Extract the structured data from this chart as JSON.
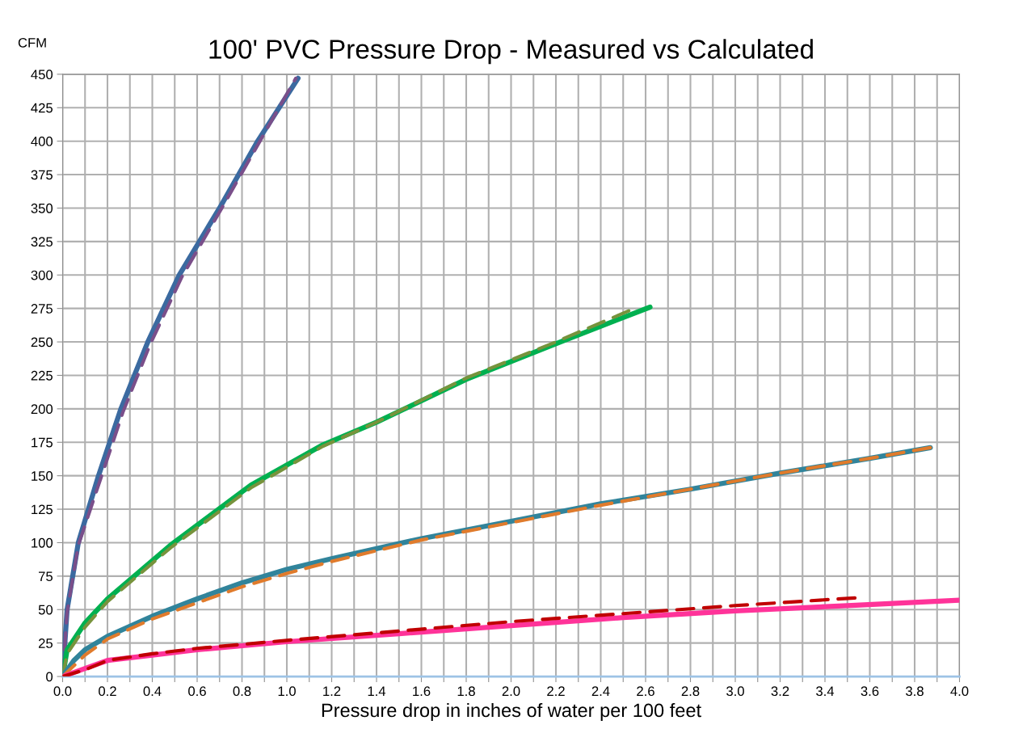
{
  "chart_data": {
    "type": "line",
    "title": "100' PVC Pressure Drop - Measured vs Calculated",
    "xlabel": "Pressure drop in inches of water per 100 feet",
    "ylabel": "CFM",
    "xlim": [
      0,
      4.0
    ],
    "ylim": [
      0,
      450
    ],
    "xticks": [
      {
        "value": 0,
        "label": "0.0"
      },
      {
        "value": 0.1,
        "label": null
      },
      {
        "value": 0.2,
        "label": "0.2"
      },
      {
        "value": 0.3,
        "label": null
      },
      {
        "value": 0.4,
        "label": "0.4"
      },
      {
        "value": 0.5,
        "label": null
      },
      {
        "value": 0.6,
        "label": "0.6"
      },
      {
        "value": 0.7,
        "label": null
      },
      {
        "value": 0.8,
        "label": "0.8"
      },
      {
        "value": 0.9,
        "label": null
      },
      {
        "value": 1.0,
        "label": "1.0"
      },
      {
        "value": 1.1,
        "label": null
      },
      {
        "value": 1.2,
        "label": "1.2"
      },
      {
        "value": 1.3,
        "label": null
      },
      {
        "value": 1.4,
        "label": "1.4"
      },
      {
        "value": 1.5,
        "label": null
      },
      {
        "value": 1.6,
        "label": "1.6"
      },
      {
        "value": 1.7,
        "label": null
      },
      {
        "value": 1.8,
        "label": "1.8"
      },
      {
        "value": 1.9,
        "label": null
      },
      {
        "value": 2.0,
        "label": "2.0"
      },
      {
        "value": 2.1,
        "label": null
      },
      {
        "value": 2.2,
        "label": "2.2"
      },
      {
        "value": 2.3,
        "label": null
      },
      {
        "value": 2.4,
        "label": "2.4"
      },
      {
        "value": 2.5,
        "label": null
      },
      {
        "value": 2.6,
        "label": "2.6"
      },
      {
        "value": 2.7,
        "label": null
      },
      {
        "value": 2.8,
        "label": "2.8"
      },
      {
        "value": 2.9,
        "label": null
      },
      {
        "value": 3.0,
        "label": "3.0"
      },
      {
        "value": 3.1,
        "label": null
      },
      {
        "value": 3.2,
        "label": "3.2"
      },
      {
        "value": 3.3,
        "label": null
      },
      {
        "value": 3.4,
        "label": "3.4"
      },
      {
        "value": 3.5,
        "label": null
      },
      {
        "value": 3.6,
        "label": "3.6"
      },
      {
        "value": 3.7,
        "label": null
      },
      {
        "value": 3.8,
        "label": "3.8"
      },
      {
        "value": 3.9,
        "label": null
      },
      {
        "value": 4.0,
        "label": "4.0"
      }
    ],
    "yticks": [
      0,
      25,
      50,
      75,
      100,
      125,
      150,
      175,
      200,
      225,
      250,
      275,
      300,
      325,
      350,
      375,
      400,
      425,
      450
    ],
    "grid": true,
    "legend": false,
    "marker": "none",
    "series": [
      {
        "color": "#3b6aa0",
        "line_style": "solid",
        "x": [
          0,
          0.02,
          0.07,
          0.16,
          0.26,
          0.38,
          0.52,
          0.7,
          0.87,
          1.05
        ],
        "values": [
          0,
          50,
          100,
          150,
          200,
          250,
          300,
          350,
          400,
          447
        ]
      },
      {
        "color": "#7a4f8a",
        "line_style": "dashed",
        "x": [
          0,
          0.02,
          0.07,
          0.17,
          0.27,
          0.39,
          0.53,
          0.71,
          0.88,
          1.04
        ],
        "values": [
          0,
          48,
          98,
          148,
          198,
          248,
          298,
          350,
          400,
          447
        ]
      },
      {
        "color": "#00b050",
        "line_style": "solid",
        "x": [
          0,
          0.02,
          0.1,
          0.2,
          0.48,
          0.84,
          1.16,
          1.4,
          1.8,
          2.22,
          2.62
        ],
        "values": [
          0,
          20,
          40,
          58,
          98,
          143,
          173,
          190,
          222,
          250,
          276
        ]
      },
      {
        "color": "#77933c",
        "line_style": "dashed",
        "x": [
          0,
          0.02,
          0.1,
          0.2,
          0.48,
          0.84,
          1.16,
          1.4,
          1.8,
          2.2,
          2.55
        ],
        "values": [
          0,
          17,
          37,
          56,
          96,
          141,
          172,
          190,
          223,
          250,
          275
        ]
      },
      {
        "color": "#31849b",
        "line_style": "solid",
        "x": [
          0,
          0.05,
          0.1,
          0.2,
          0.4,
          0.6,
          0.8,
          1.0,
          1.2,
          1.6,
          2.0,
          2.4,
          2.8,
          3.2,
          3.6,
          3.87
        ],
        "values": [
          0,
          12,
          20,
          30,
          45,
          58,
          70,
          80,
          88,
          103,
          116,
          129,
          140,
          152,
          163,
          171
        ]
      },
      {
        "color": "#e07b2c",
        "line_style": "dashed",
        "x": [
          0,
          0.05,
          0.1,
          0.2,
          0.4,
          0.6,
          0.8,
          1.0,
          1.2,
          1.6,
          2.0,
          2.4,
          2.8,
          3.2,
          3.6,
          3.87
        ],
        "values": [
          0,
          8,
          16,
          28,
          43,
          55,
          67,
          77,
          86,
          102,
          115,
          128,
          140,
          152,
          163,
          171
        ]
      },
      {
        "color": "#ff3399",
        "line_style": "solid",
        "x": [
          0,
          0.1,
          0.2,
          0.4,
          0.6,
          1.0,
          1.5,
          2.0,
          2.5,
          3.0,
          3.5,
          4.0
        ],
        "values": [
          0,
          6,
          12,
          16,
          20,
          26,
          32,
          38,
          44,
          49,
          53,
          57
        ]
      },
      {
        "color": "#c00000",
        "line_style": "dashed",
        "x": [
          0,
          0.1,
          0.2,
          0.4,
          0.6,
          1.0,
          1.5,
          2.0,
          2.5,
          3.0,
          3.56
        ],
        "values": [
          0,
          5,
          12,
          17,
          21,
          27,
          34,
          41,
          47,
          53,
          59
        ]
      }
    ]
  }
}
